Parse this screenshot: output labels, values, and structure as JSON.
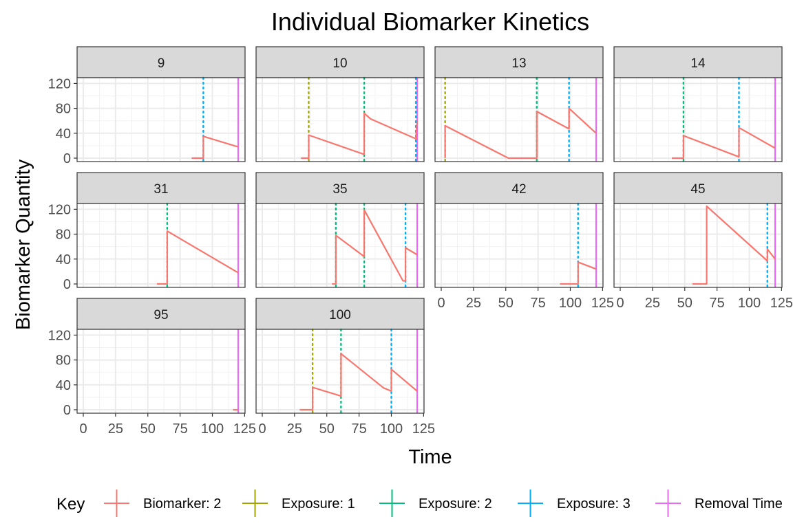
{
  "chart_data": {
    "type": "line",
    "title": "Individual Biomarker Kinetics",
    "xlabel": "Time",
    "ylabel": "Biomarker Quantity",
    "xlim": [
      0,
      120
    ],
    "ylim": [
      0,
      125
    ],
    "xticks": [
      0,
      25,
      50,
      75,
      100,
      125
    ],
    "xtick_labels": [
      "0",
      "25",
      "50",
      "75",
      "100",
      "125"
    ],
    "yticks": [
      0,
      40,
      80,
      120
    ],
    "ytick_labels": [
      "0",
      "40",
      "80",
      "120"
    ],
    "grid": true,
    "legend": {
      "position": "bottom",
      "title": "Key",
      "items": [
        {
          "label": "Biomarker: 2",
          "color": "#F8766D"
        },
        {
          "label": "Exposure: 1",
          "color": "#A3A500"
        },
        {
          "label": "Exposure: 2",
          "color": "#00BF7D"
        },
        {
          "label": "Exposure: 3",
          "color": "#00B0F6"
        },
        {
          "label": "Removal Time",
          "color": "#E76BF3"
        }
      ]
    },
    "panels": [
      {
        "id": "9",
        "removal": 120,
        "exposures": [
          {
            "type": 3,
            "time": 93
          }
        ],
        "line": [
          [
            84,
            0
          ],
          [
            93,
            0
          ],
          [
            93,
            35
          ],
          [
            120,
            18
          ]
        ]
      },
      {
        "id": "10",
        "removal": 120,
        "exposures": [
          {
            "type": 1,
            "time": 36
          },
          {
            "type": 2,
            "time": 79
          },
          {
            "type": 3,
            "time": 119
          }
        ],
        "line": [
          [
            30,
            0
          ],
          [
            36,
            0
          ],
          [
            36,
            37
          ],
          [
            79,
            6
          ],
          [
            79,
            72
          ],
          [
            84,
            63
          ],
          [
            119,
            31
          ],
          [
            120,
            60
          ]
        ]
      },
      {
        "id": "13",
        "removal": 120,
        "exposures": [
          {
            "type": 1,
            "time": 3
          },
          {
            "type": 2,
            "time": 74
          },
          {
            "type": 3,
            "time": 99
          }
        ],
        "line": [
          [
            3,
            0
          ],
          [
            3,
            52
          ],
          [
            52,
            0
          ],
          [
            74,
            0
          ],
          [
            74,
            75
          ],
          [
            99,
            47
          ],
          [
            99,
            80
          ],
          [
            120,
            40
          ]
        ]
      },
      {
        "id": "14",
        "removal": 120,
        "exposures": [
          {
            "type": 2,
            "time": 49
          },
          {
            "type": 3,
            "time": 92
          }
        ],
        "line": [
          [
            40,
            0
          ],
          [
            49,
            0
          ],
          [
            49,
            36
          ],
          [
            92,
            2
          ],
          [
            92,
            49
          ],
          [
            120,
            16
          ]
        ]
      },
      {
        "id": "31",
        "removal": 120,
        "exposures": [
          {
            "type": 2,
            "time": 65
          }
        ],
        "line": [
          [
            57,
            0
          ],
          [
            65,
            0
          ],
          [
            65,
            85
          ],
          [
            120,
            18
          ]
        ]
      },
      {
        "id": "35",
        "removal": 120,
        "exposures": [
          {
            "type": 2,
            "time": 57
          },
          {
            "type": 2,
            "time": 79
          },
          {
            "type": 3,
            "time": 111
          }
        ],
        "line": [
          [
            54,
            0
          ],
          [
            57,
            0
          ],
          [
            57,
            78
          ],
          [
            79,
            44
          ],
          [
            79,
            119
          ],
          [
            109,
            5
          ],
          [
            111,
            5
          ],
          [
            111,
            58
          ],
          [
            120,
            47
          ]
        ]
      },
      {
        "id": "42",
        "removal": 120,
        "exposures": [
          {
            "type": 3,
            "time": 106
          }
        ],
        "line": [
          [
            92,
            0
          ],
          [
            106,
            0
          ],
          [
            106,
            35
          ],
          [
            120,
            24
          ]
        ]
      },
      {
        "id": "45",
        "removal": 120,
        "exposures": [
          {
            "type": 3,
            "time": 114
          }
        ],
        "line": [
          [
            56,
            0
          ],
          [
            67,
            0
          ],
          [
            67,
            125
          ],
          [
            114,
            37
          ],
          [
            114,
            56
          ],
          [
            120,
            40
          ]
        ]
      },
      {
        "id": "95",
        "removal": 120,
        "exposures": [],
        "line": [
          [
            116,
            0
          ],
          [
            120,
            0
          ]
        ]
      },
      {
        "id": "100",
        "removal": 120,
        "exposures": [
          {
            "type": 1,
            "time": 39
          },
          {
            "type": 2,
            "time": 61
          },
          {
            "type": 3,
            "time": 100
          }
        ],
        "line": [
          [
            29,
            0
          ],
          [
            39,
            0
          ],
          [
            39,
            36
          ],
          [
            61,
            22
          ],
          [
            61,
            90
          ],
          [
            94,
            35
          ],
          [
            100,
            30
          ],
          [
            100,
            65
          ],
          [
            120,
            30
          ]
        ]
      }
    ]
  }
}
